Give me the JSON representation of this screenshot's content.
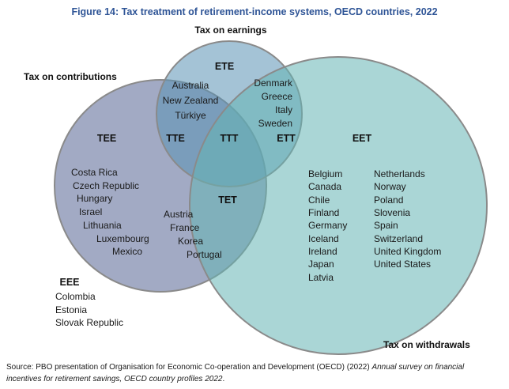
{
  "title": "Figure 14: Tax treatment of retirement-income systems, OECD countries, 2022",
  "colors": {
    "title_text": "#2e5496",
    "circle_contributions_fill": "#566494",
    "circle_earnings_fill": "#5a91b4",
    "circle_withdrawals_fill": "#64b4b4",
    "circle_stroke": "#8a8a8a",
    "label_text": "#1a1a1a"
  },
  "circles": {
    "contributions": {
      "label": "Tax on contributions"
    },
    "earnings": {
      "label": "Tax on earnings"
    },
    "withdrawals": {
      "label": "Tax on withdrawals"
    }
  },
  "regions": {
    "TEE": {
      "code": "TEE",
      "countries": [
        "Costa Rica",
        "Czech Republic",
        "Hungary",
        "Israel",
        "Lithuania",
        "Luxembourg",
        "Mexico"
      ]
    },
    "TTE": {
      "code": "TTE",
      "countries": [
        "Australia",
        "New Zealand",
        "Türkiye"
      ]
    },
    "ETE": {
      "code": "ETE",
      "countries": []
    },
    "TTT": {
      "code": "TTT",
      "countries": []
    },
    "ETT": {
      "code": "ETT",
      "countries": [
        "Denmark",
        "Greece",
        "Italy",
        "Sweden"
      ]
    },
    "TET": {
      "code": "TET",
      "countries": [
        "Austria",
        "France",
        "Korea",
        "Portugal"
      ]
    },
    "EET": {
      "code": "EET",
      "countries_col1": [
        "Belgium",
        "Canada",
        "Chile",
        "Finland",
        "Germany",
        "Iceland",
        "Ireland",
        "Japan",
        "Latvia"
      ],
      "countries_col2": [
        "Netherlands",
        "Norway",
        "Poland",
        "Slovenia",
        "Spain",
        "Switzerland",
        "United Kingdom",
        "United States"
      ]
    },
    "EEE": {
      "code": "EEE",
      "countries": [
        "Colombia",
        "Estonia",
        "Slovak Republic"
      ]
    }
  },
  "source": {
    "prefix": "Source: PBO presentation of Organisation for Economic Co-operation and Development (OECD) (2022) ",
    "italic_line1": "Annual survey on financial",
    "italic_line2": "incentives for retirement savings, OECD country profiles 2022",
    "suffix": "."
  }
}
